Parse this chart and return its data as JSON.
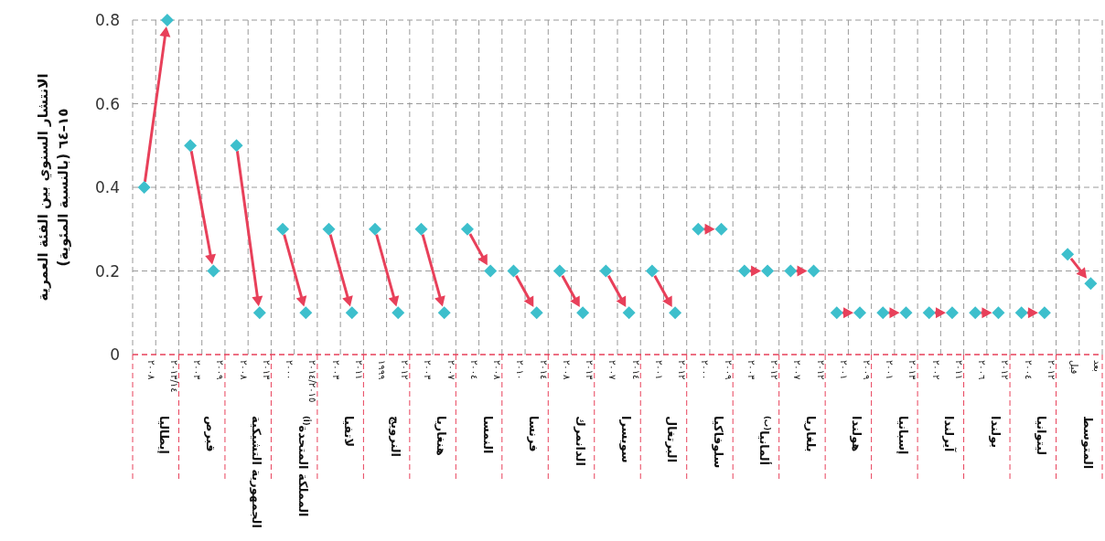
{
  "chart_data": {
    "type": "scatter",
    "ylabel": "الانتشار السنوي بين الفئة العمرية ١٥–٦٤ (بالنسبة المئوية)",
    "categories": [
      "إيطاليا",
      "قبرص",
      "الجمهورية التشيكية",
      "المملكة المتحدة$^{(أ)}$",
      "لاتفيا",
      "النرويج",
      "هنغاريا",
      "النمسا",
      "فرنسا",
      "الدانمرك",
      "سويسرا",
      "البرتغال",
      "سلوفاكيا",
      "ألمانيا$^{(ب)}$",
      "بلغاريا",
      "هولندا",
      "إسبانيا",
      "آيرلندا",
      "بولندا",
      "ليتوانيا",
      "المتوسط"
    ],
    "series": [
      {
        "color": "#3dbfcc",
        "values": [
          0.4,
          0.5,
          0.5,
          0.3,
          0.3,
          0.3,
          0.3,
          0.3,
          0.2,
          0.2,
          0.2,
          0.2,
          0.3,
          0.2,
          0.2,
          0.1,
          0.1,
          0.1,
          0.1,
          0.1,
          0.24
        ]
      },
      {
        "color": "#3dbfcc",
        "values": [
          0.8,
          0.2,
          0.1,
          0.1,
          0.1,
          0.1,
          0.1,
          0.2,
          0.1,
          0.1,
          0.1,
          0.1,
          0.3,
          0.2,
          0.2,
          0.1,
          0.1,
          0.1,
          0.1,
          0.1,
          0.17
        ]
      }
    ],
    "ylim": [
      0,
      0.8
    ],
    "yticks": [
      0,
      0.2,
      0.4,
      0.6,
      0.8
    ],
    "grid": true,
    "marker": "diamond",
    "annotations": [
      "٢٠٠٨",
      "٢٠١٣/١٤",
      "٢٠٠٣",
      "٢٠٠٩",
      "٢٠٠٨",
      "٢٠١٣",
      "٢٠٠٠",
      "٢٠١٤/٢٠١٥",
      "٢٠٠٣",
      "٢٠١١",
      "١٩٩٩",
      "٢٠١٢",
      "٢٠٠٣",
      "٢٠٠٧",
      "٢٠٠٤",
      "٢٠٠٨",
      "٢٠١٠",
      "٢٠١٤",
      "٢٠٠٨",
      "٢٠١٣",
      "٢٠٠٧",
      "٢٠١٤",
      "٢٠٠١",
      "٢٠١٢",
      "٢٠٠٠",
      "٢٠٠٩",
      "٢٠٠٣",
      "٢٠١٢",
      "٢٠٠٧",
      "٢٠١٢",
      "٢٠٠١",
      "٢٠٠٩",
      "٢٠٠١",
      "٢٠١٣",
      "٢٠٠٢",
      "٢٠١١",
      "٢٠٠٦",
      "٢٠١٢",
      "٢٠٠٤",
      "٢٠١٢",
      "قبل",
      "بعد"
    ]
  }
}
